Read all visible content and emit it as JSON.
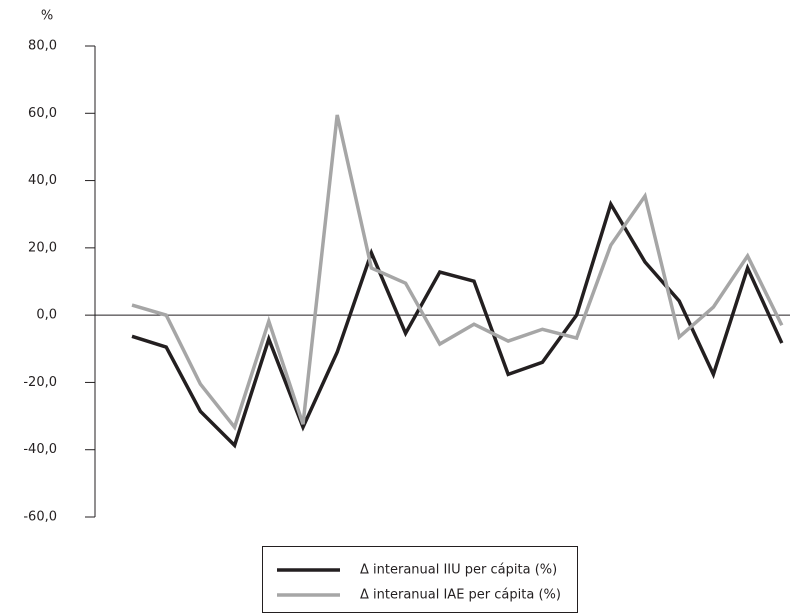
{
  "chart_data": {
    "type": "line",
    "y_unit": "%",
    "categories": [
      null,
      null,
      null,
      null,
      null,
      null,
      null,
      null,
      null,
      null,
      null,
      null,
      null,
      null,
      null,
      null,
      null,
      null,
      null,
      null
    ],
    "series": [
      {
        "name": "Δ interanual IIU per cápita (%)",
        "color": "#231f20",
        "values": [
          -6.3,
          -9.5,
          -28.6,
          -38.7,
          -7.1,
          -33.3,
          -11,
          18.5,
          -5.4,
          12.8,
          10.1,
          -17.6,
          -14,
          0,
          33,
          15.8,
          4.2,
          -17.6,
          14,
          -8.3
        ]
      },
      {
        "name": "Δ interanual IAE per cápita (%)",
        "color": "#a6a6a6",
        "values": [
          3,
          0,
          -20.5,
          -33.3,
          -1.8,
          -32.4,
          59.5,
          14,
          9.5,
          -8.6,
          -2.7,
          -7.7,
          -4.2,
          -6.8,
          20.8,
          35.4,
          -6.5,
          2.4,
          17.6,
          -3
        ]
      }
    ],
    "ylim": [
      -60,
      80
    ],
    "yticks": [
      {
        "value": -60,
        "label": "-60,0"
      },
      {
        "value": -40,
        "label": "-40,0"
      },
      {
        "value": -20,
        "label": "-20,0"
      },
      {
        "value": 0,
        "label": "0,0"
      },
      {
        "value": 20,
        "label": "20,0"
      },
      {
        "value": 40,
        "label": "40,0"
      },
      {
        "value": 60,
        "label": "60,0"
      },
      {
        "value": 80,
        "label": "80,0"
      }
    ],
    "zero_line": true
  }
}
